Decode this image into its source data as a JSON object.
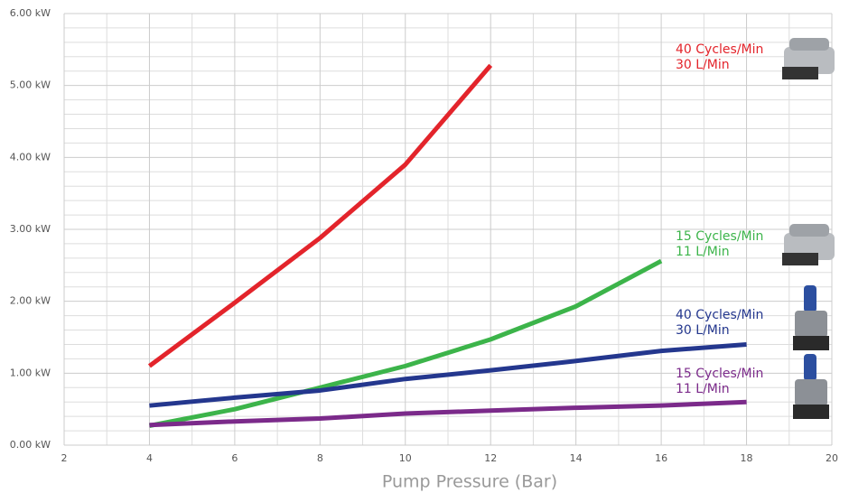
{
  "chart_data": {
    "type": "line",
    "xlabel": "Pump Pressure (Bar)",
    "xlim": [
      2,
      20
    ],
    "xticks": [
      2,
      4,
      6,
      8,
      10,
      12,
      14,
      16,
      18,
      20
    ],
    "xminor": [
      3,
      5,
      7,
      9,
      11,
      13,
      15,
      17,
      19
    ],
    "ylim": [
      0,
      6
    ],
    "yticks": [
      {
        "value": 0,
        "label": "0.00 kW"
      },
      {
        "value": 1,
        "label": "1.00 kW"
      },
      {
        "value": 2,
        "label": "2.00 kW"
      },
      {
        "value": 3,
        "label": "3.00 kW"
      },
      {
        "value": 4,
        "label": "4.00 kW"
      },
      {
        "value": 5,
        "label": "5.00 kW"
      },
      {
        "value": 6,
        "label": "6.00 kW"
      }
    ],
    "yminor": [
      0.2,
      0.4,
      0.6,
      0.8,
      1.2,
      1.4,
      1.6,
      1.8,
      2.2,
      2.4,
      2.6,
      2.8,
      3.2,
      3.4,
      3.6,
      3.8,
      4.2,
      4.4,
      4.6,
      4.8,
      5.2,
      5.4,
      5.6,
      5.8
    ],
    "grid": true,
    "series": [
      {
        "name": "40 Cycles/Min",
        "flow": "30 L/Min",
        "color": "#e3242b",
        "x": [
          4,
          6,
          8,
          10,
          12
        ],
        "values": [
          1.1,
          1.98,
          2.88,
          3.9,
          5.28
        ]
      },
      {
        "name": "15 Cycles/Min",
        "flow": "11 L/Min",
        "color": "#3cb44a",
        "x": [
          4,
          6,
          8,
          10,
          12,
          14,
          16
        ],
        "values": [
          0.27,
          0.5,
          0.8,
          1.1,
          1.47,
          1.93,
          2.56
        ]
      },
      {
        "name": "40 Cycles/Min",
        "flow": "30 L/Min",
        "color": "#24378e",
        "x": [
          4,
          6,
          8,
          10,
          12,
          14,
          16,
          18
        ],
        "values": [
          0.55,
          0.66,
          0.76,
          0.92,
          1.04,
          1.17,
          1.31,
          1.4
        ]
      },
      {
        "name": "15 Cycles/Min",
        "flow": "11 L/Min",
        "color": "#7b2a8a",
        "x": [
          4,
          6,
          8,
          10,
          12,
          14,
          16,
          18
        ],
        "values": [
          0.28,
          0.33,
          0.37,
          0.44,
          0.48,
          0.52,
          0.55,
          0.6
        ]
      }
    ]
  }
}
